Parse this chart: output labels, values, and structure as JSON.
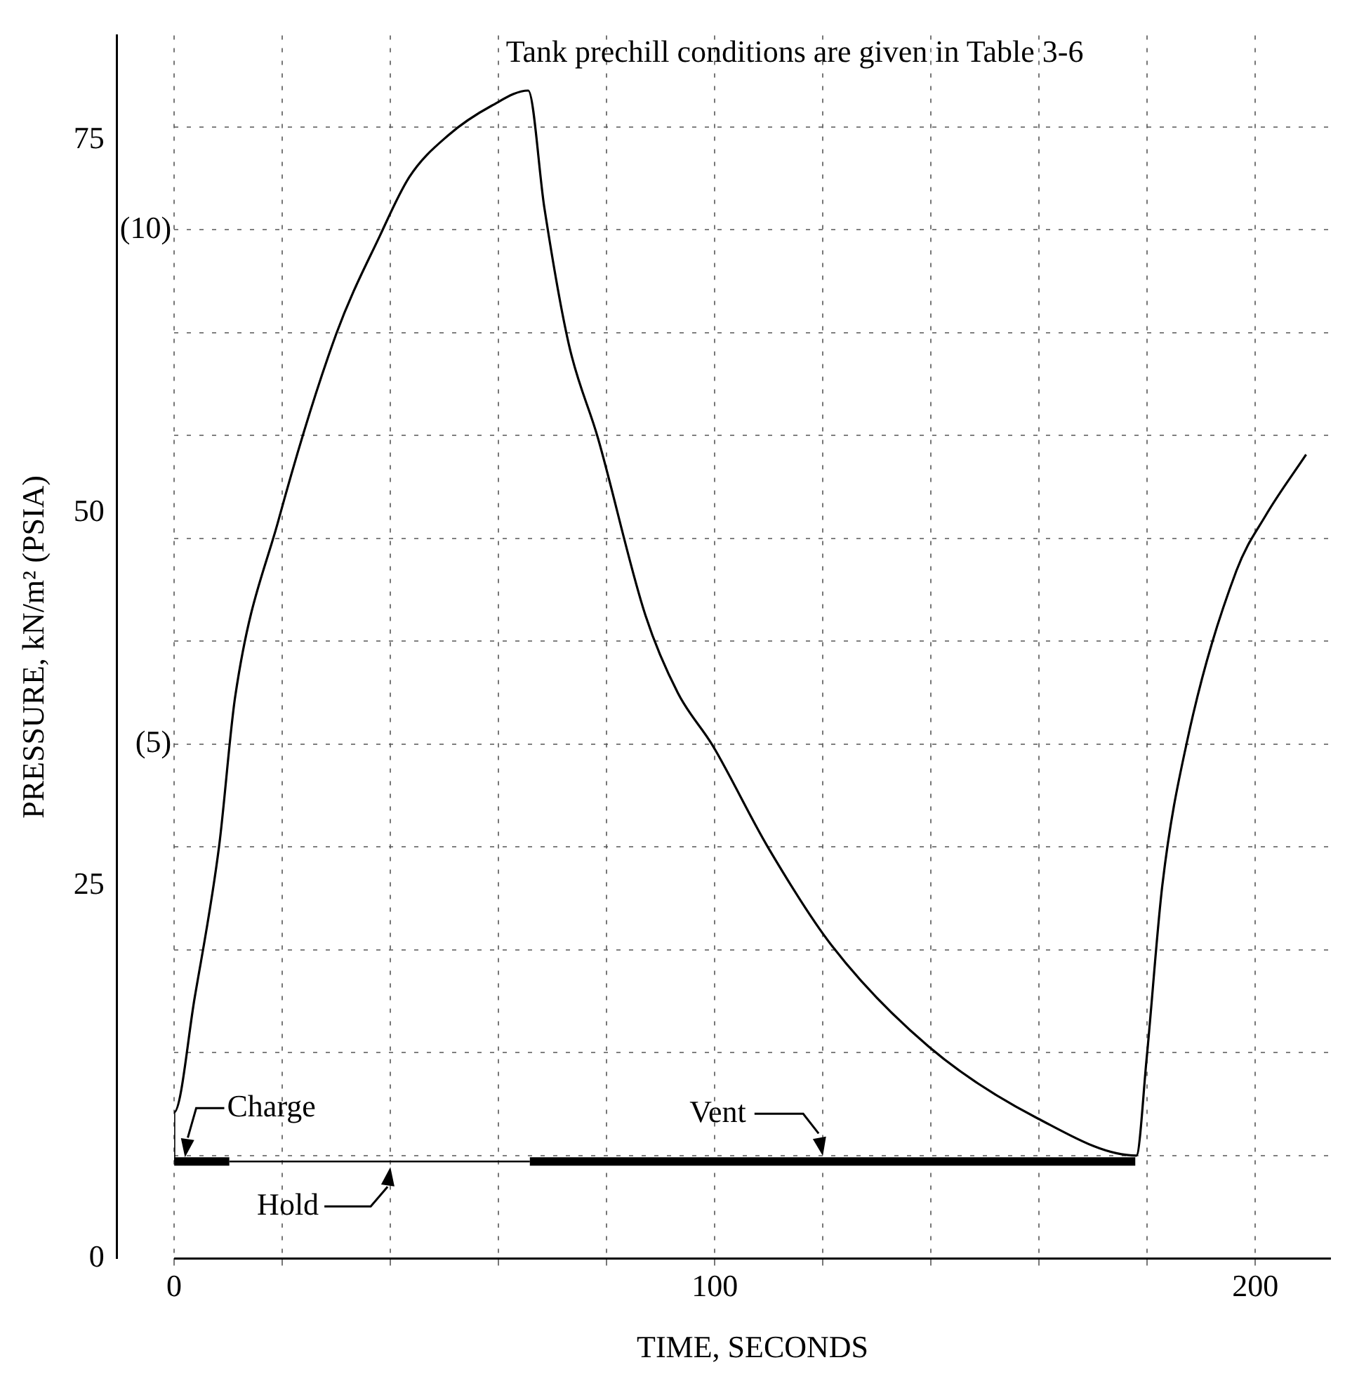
{
  "chart_data": {
    "type": "line",
    "xlabel": "TIME, SECONDS",
    "ylabel": "PRESSURE, kN/m² (PSIA)",
    "annotations": [
      "Tank prechill conditions are given in Table 3-6",
      {
        "text": "Charge",
        "x": 2,
        "y": 6.5
      },
      {
        "text": "Hold",
        "x": 40,
        "y": 6.5
      },
      {
        "text": "Vent",
        "x": 120,
        "y": 6.5
      }
    ],
    "series": [
      {
        "color": "#000000",
        "x": [
          0,
          0,
          3.8,
          8.3,
          11.3,
          19.3,
          30,
          38.1,
          43.5,
          50.7,
          58.8,
          65.5,
          68.5,
          73,
          78.4,
          87.2,
          93.2,
          99.6,
          109.8,
          121.6,
          139.6,
          159.7,
          178,
          179.9,
          182.8,
          187.4,
          196.5,
          201.9,
          209.4
        ],
        "values": [
          6.5,
          9.8,
          17.5,
          27.6,
          37.7,
          49.5,
          62,
          68.6,
          72.5,
          75.3,
          77.3,
          78.3,
          70.4,
          61.3,
          55,
          43.1,
          37.9,
          34.4,
          27.6,
          21,
          14.2,
          9.4,
          6.9,
          13.4,
          25,
          34.7,
          46.1,
          49.8,
          53.9
        ]
      },
      {
        "color": "#000000",
        "x": [
          0,
          10.2
        ],
        "values": [
          6.5,
          6.5
        ]
      },
      {
        "color": "#000000",
        "x": [
          10.2,
          65.8
        ],
        "values": [
          6.5,
          6.5
        ]
      },
      {
        "color": "#000000",
        "x": [
          65.8,
          177.8
        ],
        "values": [
          6.5,
          6.5
        ]
      }
    ],
    "xlim": [
      0,
      214
    ],
    "xticks": [
      0,
      {
        "value": 20,
        "label": null
      },
      {
        "value": 40,
        "label": null
      },
      {
        "value": 60,
        "label": null
      },
      {
        "value": 80,
        "label": null
      },
      100,
      {
        "value": 120,
        "label": null
      },
      {
        "value": 140,
        "label": null
      },
      {
        "value": 160,
        "label": null
      },
      {
        "value": 180,
        "label": null
      },
      200
    ],
    "ylim": [
      0,
      82
    ],
    "yticks": [
      0,
      25,
      50,
      75
    ],
    "y2lim": [
      0,
      11.89
    ],
    "y2ticks": [
      {
        "value": 1,
        "label": null
      },
      {
        "value": 2,
        "label": null
      },
      {
        "value": 3,
        "label": null
      },
      {
        "value": 4,
        "label": null
      },
      {
        "value": 5,
        "label": "(5)"
      },
      {
        "value": 6,
        "label": null
      },
      {
        "value": 7,
        "label": null
      },
      {
        "value": 8,
        "label": null
      },
      {
        "value": 9,
        "label": null
      },
      {
        "value": 10,
        "label": "(10)"
      },
      {
        "value": 11,
        "label": null
      }
    ],
    "grid": true,
    "legend": false,
    "marker": "none",
    "line_style": "solid"
  }
}
